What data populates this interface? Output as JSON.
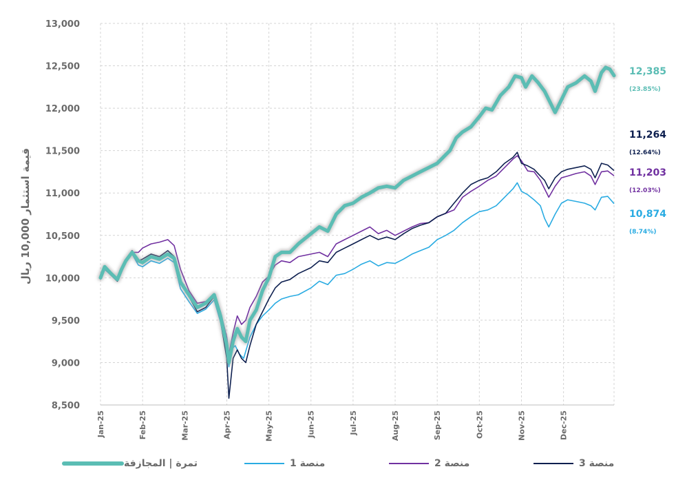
{
  "chart_data": {
    "type": "line",
    "ylabel": "قيمة استثمار 10,000 ريال",
    "ylim": [
      8500,
      13000
    ],
    "y_ticks": [
      "8,500",
      "9,000",
      "9,500",
      "10,000",
      "10,500",
      "11,000",
      "11,500",
      "12,000",
      "12,500",
      "13,000"
    ],
    "x_ticks": [
      "Jan-25",
      "Feb-25",
      "Mar-25",
      "Apr-25",
      "May-25",
      "Jun-25",
      "Jul-25",
      "Aug-25",
      "Sep-25",
      "Oct-25",
      "Nov-25",
      "Dec-25"
    ],
    "series": [
      {
        "name": "تمرة | المجازفة",
        "color": "#5bbdb4",
        "end_value": "12,385",
        "end_pct": "(23.85%)",
        "points": [
          [
            0,
            10000
          ],
          [
            0.1,
            10130
          ],
          [
            0.25,
            10050
          ],
          [
            0.4,
            9980
          ],
          [
            0.5,
            10100
          ],
          [
            0.6,
            10200
          ],
          [
            0.75,
            10300
          ],
          [
            0.9,
            10200
          ],
          [
            1.0,
            10180
          ],
          [
            1.2,
            10250
          ],
          [
            1.4,
            10220
          ],
          [
            1.6,
            10280
          ],
          [
            1.75,
            10230
          ],
          [
            1.9,
            9950
          ],
          [
            2.1,
            9800
          ],
          [
            2.3,
            9650
          ],
          [
            2.5,
            9700
          ],
          [
            2.7,
            9800
          ],
          [
            2.85,
            9550
          ],
          [
            3.0,
            9200
          ],
          [
            3.05,
            9000
          ],
          [
            3.15,
            9250
          ],
          [
            3.25,
            9400
          ],
          [
            3.35,
            9300
          ],
          [
            3.45,
            9250
          ],
          [
            3.55,
            9500
          ],
          [
            3.7,
            9620
          ],
          [
            3.85,
            9850
          ],
          [
            4.0,
            10000
          ],
          [
            4.15,
            10250
          ],
          [
            4.3,
            10300
          ],
          [
            4.5,
            10300
          ],
          [
            4.7,
            10400
          ],
          [
            5.0,
            10520
          ],
          [
            5.2,
            10600
          ],
          [
            5.4,
            10550
          ],
          [
            5.6,
            10750
          ],
          [
            5.8,
            10850
          ],
          [
            6.0,
            10880
          ],
          [
            6.2,
            10950
          ],
          [
            6.4,
            11000
          ],
          [
            6.6,
            11060
          ],
          [
            6.8,
            11080
          ],
          [
            7.0,
            11060
          ],
          [
            7.2,
            11150
          ],
          [
            7.4,
            11200
          ],
          [
            7.6,
            11250
          ],
          [
            7.8,
            11300
          ],
          [
            8.0,
            11350
          ],
          [
            8.2,
            11450
          ],
          [
            8.3,
            11500
          ],
          [
            8.45,
            11650
          ],
          [
            8.6,
            11720
          ],
          [
            8.8,
            11780
          ],
          [
            9.0,
            11900
          ],
          [
            9.15,
            12000
          ],
          [
            9.3,
            11980
          ],
          [
            9.5,
            12150
          ],
          [
            9.7,
            12250
          ],
          [
            9.85,
            12380
          ],
          [
            10.0,
            12360
          ],
          [
            10.1,
            12250
          ],
          [
            10.25,
            12380
          ],
          [
            10.4,
            12300
          ],
          [
            10.55,
            12200
          ],
          [
            10.7,
            12050
          ],
          [
            10.8,
            11950
          ],
          [
            10.95,
            12100
          ],
          [
            11.1,
            12250
          ],
          [
            11.3,
            12300
          ],
          [
            11.5,
            12380
          ],
          [
            11.65,
            12320
          ],
          [
            11.75,
            12200
          ],
          [
            11.9,
            12420
          ],
          [
            12.0,
            12480
          ],
          [
            12.1,
            12460
          ],
          [
            12.2,
            12385
          ]
        ]
      },
      {
        "name": "منصة 1",
        "color": "#29abe2",
        "end_value": "10,874",
        "end_pct": "(8.74%)",
        "points": [
          [
            0,
            9980
          ],
          [
            0.1,
            10100
          ],
          [
            0.25,
            10030
          ],
          [
            0.4,
            9960
          ],
          [
            0.5,
            10080
          ],
          [
            0.6,
            10180
          ],
          [
            0.75,
            10280
          ],
          [
            0.9,
            10150
          ],
          [
            1.0,
            10130
          ],
          [
            1.2,
            10200
          ],
          [
            1.4,
            10170
          ],
          [
            1.6,
            10230
          ],
          [
            1.75,
            10180
          ],
          [
            1.9,
            9870
          ],
          [
            2.1,
            9720
          ],
          [
            2.3,
            9580
          ],
          [
            2.5,
            9630
          ],
          [
            2.7,
            9740
          ],
          [
            2.85,
            9480
          ],
          [
            3.0,
            9100
          ],
          [
            3.05,
            8950
          ],
          [
            3.1,
            9150
          ],
          [
            3.2,
            9200
          ],
          [
            3.3,
            9100
          ],
          [
            3.4,
            9050
          ],
          [
            3.55,
            9300
          ],
          [
            3.7,
            9450
          ],
          [
            3.85,
            9550
          ],
          [
            4.0,
            9620
          ],
          [
            4.15,
            9700
          ],
          [
            4.3,
            9750
          ],
          [
            4.5,
            9780
          ],
          [
            4.7,
            9800
          ],
          [
            5.0,
            9880
          ],
          [
            5.2,
            9960
          ],
          [
            5.4,
            9920
          ],
          [
            5.6,
            10030
          ],
          [
            5.8,
            10050
          ],
          [
            6.0,
            10100
          ],
          [
            6.2,
            10160
          ],
          [
            6.4,
            10200
          ],
          [
            6.6,
            10140
          ],
          [
            6.8,
            10180
          ],
          [
            7.0,
            10170
          ],
          [
            7.2,
            10220
          ],
          [
            7.4,
            10280
          ],
          [
            7.6,
            10320
          ],
          [
            7.8,
            10360
          ],
          [
            8.0,
            10450
          ],
          [
            8.2,
            10500
          ],
          [
            8.4,
            10560
          ],
          [
            8.6,
            10650
          ],
          [
            8.8,
            10720
          ],
          [
            9.0,
            10780
          ],
          [
            9.2,
            10800
          ],
          [
            9.4,
            10850
          ],
          [
            9.6,
            10950
          ],
          [
            9.8,
            11050
          ],
          [
            9.9,
            11120
          ],
          [
            10.0,
            11020
          ],
          [
            10.15,
            10980
          ],
          [
            10.3,
            10920
          ],
          [
            10.45,
            10850
          ],
          [
            10.55,
            10700
          ],
          [
            10.65,
            10600
          ],
          [
            10.8,
            10750
          ],
          [
            10.95,
            10880
          ],
          [
            11.1,
            10920
          ],
          [
            11.3,
            10900
          ],
          [
            11.5,
            10880
          ],
          [
            11.65,
            10850
          ],
          [
            11.75,
            10800
          ],
          [
            11.9,
            10950
          ],
          [
            12.05,
            10960
          ],
          [
            12.2,
            10874
          ]
        ]
      },
      {
        "name": "منصة 2",
        "color": "#7030a0",
        "end_value": "11,203",
        "end_pct": "(12.03%)",
        "points": [
          [
            0,
            10000
          ],
          [
            0.1,
            10120
          ],
          [
            0.25,
            10040
          ],
          [
            0.4,
            9970
          ],
          [
            0.5,
            10100
          ],
          [
            0.6,
            10220
          ],
          [
            0.75,
            10300
          ],
          [
            0.9,
            10300
          ],
          [
            1.0,
            10350
          ],
          [
            1.2,
            10400
          ],
          [
            1.4,
            10420
          ],
          [
            1.6,
            10450
          ],
          [
            1.75,
            10380
          ],
          [
            1.9,
            10100
          ],
          [
            2.1,
            9850
          ],
          [
            2.3,
            9700
          ],
          [
            2.5,
            9720
          ],
          [
            2.7,
            9800
          ],
          [
            2.85,
            9600
          ],
          [
            3.0,
            9300
          ],
          [
            3.05,
            9100
          ],
          [
            3.15,
            9350
          ],
          [
            3.25,
            9550
          ],
          [
            3.35,
            9450
          ],
          [
            3.45,
            9500
          ],
          [
            3.55,
            9650
          ],
          [
            3.7,
            9780
          ],
          [
            3.85,
            9950
          ],
          [
            4.0,
            10020
          ],
          [
            4.15,
            10150
          ],
          [
            4.3,
            10200
          ],
          [
            4.5,
            10180
          ],
          [
            4.7,
            10250
          ],
          [
            5.0,
            10280
          ],
          [
            5.2,
            10300
          ],
          [
            5.4,
            10250
          ],
          [
            5.6,
            10400
          ],
          [
            5.8,
            10450
          ],
          [
            6.0,
            10500
          ],
          [
            6.2,
            10550
          ],
          [
            6.4,
            10600
          ],
          [
            6.6,
            10520
          ],
          [
            6.8,
            10560
          ],
          [
            7.0,
            10500
          ],
          [
            7.2,
            10550
          ],
          [
            7.4,
            10600
          ],
          [
            7.6,
            10640
          ],
          [
            7.8,
            10650
          ],
          [
            8.0,
            10720
          ],
          [
            8.2,
            10760
          ],
          [
            8.4,
            10800
          ],
          [
            8.6,
            10950
          ],
          [
            8.8,
            11020
          ],
          [
            9.0,
            11080
          ],
          [
            9.2,
            11150
          ],
          [
            9.4,
            11200
          ],
          [
            9.6,
            11300
          ],
          [
            9.8,
            11400
          ],
          [
            9.9,
            11440
          ],
          [
            10.0,
            11380
          ],
          [
            10.15,
            11260
          ],
          [
            10.3,
            11250
          ],
          [
            10.45,
            11150
          ],
          [
            10.55,
            11050
          ],
          [
            10.65,
            10950
          ],
          [
            10.8,
            11080
          ],
          [
            10.95,
            11180
          ],
          [
            11.1,
            11200
          ],
          [
            11.3,
            11230
          ],
          [
            11.5,
            11250
          ],
          [
            11.65,
            11200
          ],
          [
            11.75,
            11100
          ],
          [
            11.9,
            11250
          ],
          [
            12.05,
            11260
          ],
          [
            12.2,
            11203
          ]
        ]
      },
      {
        "name": "منصة 3",
        "color": "#0d1f4f",
        "end_value": "11,264",
        "end_pct": "(12.64%)",
        "points": [
          [
            0,
            9990
          ],
          [
            0.1,
            10110
          ],
          [
            0.25,
            10030
          ],
          [
            0.4,
            9960
          ],
          [
            0.5,
            10090
          ],
          [
            0.6,
            10200
          ],
          [
            0.75,
            10320
          ],
          [
            0.9,
            10200
          ],
          [
            1.0,
            10220
          ],
          [
            1.2,
            10280
          ],
          [
            1.4,
            10250
          ],
          [
            1.6,
            10320
          ],
          [
            1.75,
            10250
          ],
          [
            1.9,
            9950
          ],
          [
            2.1,
            9780
          ],
          [
            2.3,
            9600
          ],
          [
            2.5,
            9650
          ],
          [
            2.7,
            9780
          ],
          [
            2.85,
            9500
          ],
          [
            3.0,
            9050
          ],
          [
            3.05,
            8580
          ],
          [
            3.15,
            9050
          ],
          [
            3.25,
            9150
          ],
          [
            3.35,
            9050
          ],
          [
            3.45,
            9000
          ],
          [
            3.55,
            9200
          ],
          [
            3.7,
            9450
          ],
          [
            3.85,
            9600
          ],
          [
            4.0,
            9750
          ],
          [
            4.15,
            9880
          ],
          [
            4.3,
            9950
          ],
          [
            4.5,
            9980
          ],
          [
            4.7,
            10050
          ],
          [
            5.0,
            10120
          ],
          [
            5.2,
            10200
          ],
          [
            5.4,
            10180
          ],
          [
            5.6,
            10300
          ],
          [
            5.8,
            10350
          ],
          [
            6.0,
            10400
          ],
          [
            6.2,
            10450
          ],
          [
            6.4,
            10500
          ],
          [
            6.6,
            10450
          ],
          [
            6.8,
            10480
          ],
          [
            7.0,
            10450
          ],
          [
            7.2,
            10520
          ],
          [
            7.4,
            10580
          ],
          [
            7.6,
            10620
          ],
          [
            7.8,
            10650
          ],
          [
            8.0,
            10720
          ],
          [
            8.2,
            10760
          ],
          [
            8.4,
            10880
          ],
          [
            8.6,
            11000
          ],
          [
            8.8,
            11100
          ],
          [
            9.0,
            11150
          ],
          [
            9.2,
            11180
          ],
          [
            9.4,
            11250
          ],
          [
            9.6,
            11350
          ],
          [
            9.8,
            11420
          ],
          [
            9.9,
            11480
          ],
          [
            10.0,
            11350
          ],
          [
            10.15,
            11320
          ],
          [
            10.3,
            11280
          ],
          [
            10.45,
            11200
          ],
          [
            10.55,
            11150
          ],
          [
            10.65,
            11050
          ],
          [
            10.8,
            11180
          ],
          [
            10.95,
            11250
          ],
          [
            11.1,
            11280
          ],
          [
            11.3,
            11300
          ],
          [
            11.5,
            11320
          ],
          [
            11.65,
            11280
          ],
          [
            11.75,
            11180
          ],
          [
            11.9,
            11350
          ],
          [
            12.05,
            11330
          ],
          [
            12.2,
            11264
          ]
        ]
      }
    ],
    "legend": [
      {
        "label": "تمرة | المجازفة",
        "color": "#5bbdb4"
      },
      {
        "label": "منصة 1",
        "color": "#29abe2"
      },
      {
        "label": "منصة 2",
        "color": "#7030a0"
      },
      {
        "label": "منصة 3",
        "color": "#0d1f4f"
      }
    ]
  }
}
